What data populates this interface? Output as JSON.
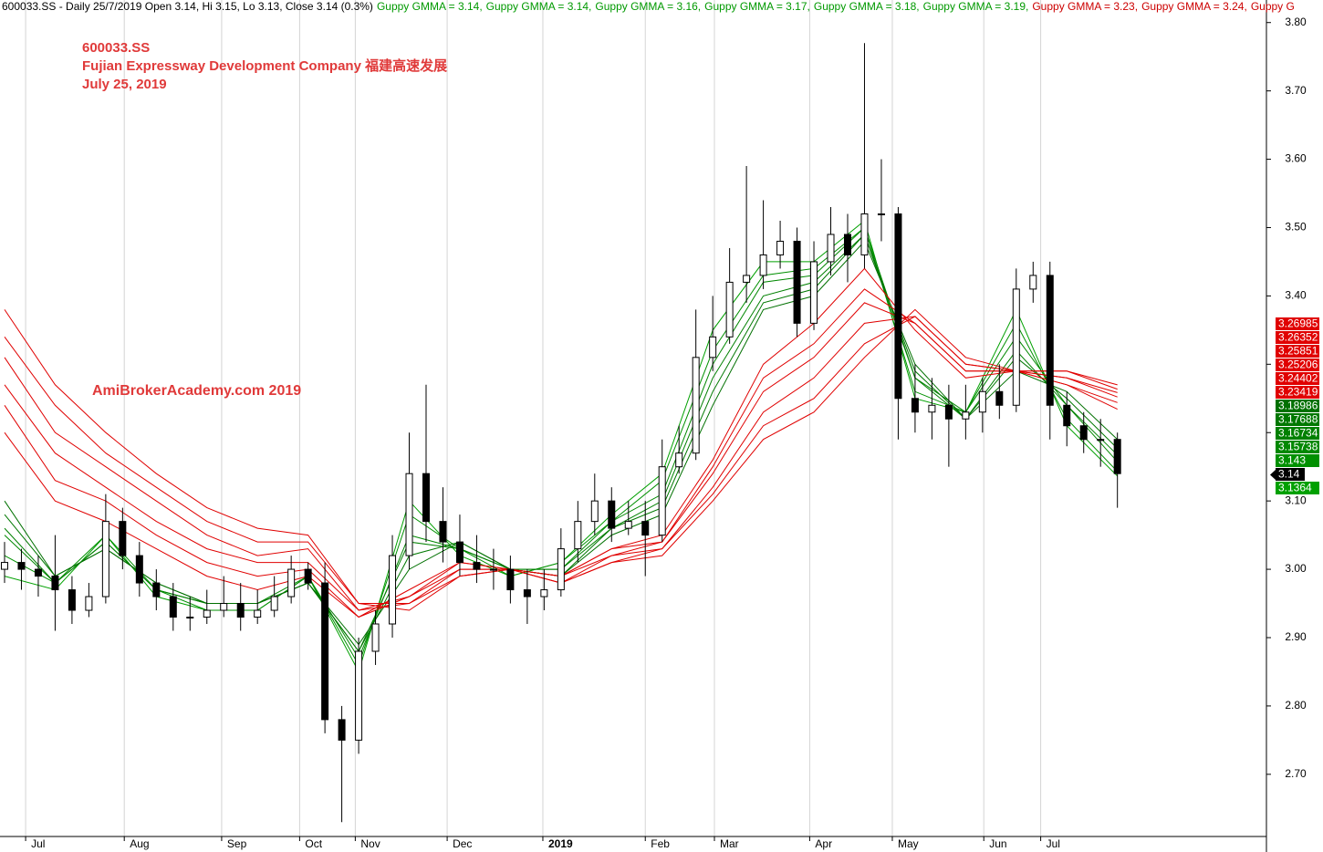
{
  "chart_data": {
    "type": "candlestick",
    "header": "600033.SS - Daily 25/7/2019 Open 3.14, Hi 3.15, Lo 3.13, Close 3.14 (0.3%)",
    "header_gmma": [
      {
        "text": "Guppy GMMA = 3.14,",
        "color": "#009900"
      },
      {
        "text": "Guppy GMMA = 3.14,",
        "color": "#009900"
      },
      {
        "text": "Guppy GMMA = 3.16,",
        "color": "#009900"
      },
      {
        "text": "Guppy GMMA = 3.17,",
        "color": "#009900"
      },
      {
        "text": "Guppy GMMA = 3.18,",
        "color": "#009900"
      },
      {
        "text": "Guppy GMMA = 3.19,",
        "color": "#009900"
      },
      {
        "text": "Guppy GMMA = 3.23,",
        "color": "#cc0000"
      },
      {
        "text": "Guppy GMMA = 3.24,",
        "color": "#cc0000"
      },
      {
        "text": "Guppy G",
        "color": "#cc0000"
      }
    ],
    "annotations": [
      "600033.SS",
      "Fujian Expressway Development Company   福建高速发展",
      "July 25, 2019"
    ],
    "watermark": "AmiBrokerAcademy.com  2019",
    "annotation_color": "#e03a3a",
    "xlim": [
      -1.08,
      299.35
    ],
    "ylim": [
      2.609,
      3.833
    ],
    "xticks": [
      {
        "value": 5,
        "label": "Jul"
      },
      {
        "value": 28.4,
        "label": "Aug"
      },
      {
        "value": 51.5,
        "label": "Sep"
      },
      {
        "value": 70,
        "label": "Oct"
      },
      {
        "value": 83.2,
        "label": "Nov"
      },
      {
        "value": 105,
        "label": "Dec"
      },
      {
        "value": 127.7,
        "label": "2019",
        "bold": true
      },
      {
        "value": 152,
        "label": "Feb"
      },
      {
        "value": 168.4,
        "label": "Mar"
      },
      {
        "value": 191,
        "label": "Apr"
      },
      {
        "value": 210.6,
        "label": "May"
      },
      {
        "value": 232.3,
        "label": "Jun"
      },
      {
        "value": 245.8,
        "label": "Jul"
      }
    ],
    "yticks": [
      {
        "value": 2.7,
        "label": "2.70"
      },
      {
        "value": 2.8,
        "label": "2.80"
      },
      {
        "value": 2.9,
        "label": "2.90"
      },
      {
        "value": 3.0,
        "label": "3.00"
      },
      {
        "value": 3.1,
        "label": "3.10"
      },
      {
        "value": 3.2,
        "label": "3.20"
      },
      {
        "value": 3.3,
        "label": "3.30"
      },
      {
        "value": 3.4,
        "label": "3.40"
      },
      {
        "value": 3.5,
        "label": "3.50"
      },
      {
        "value": 3.6,
        "label": "3.60"
      },
      {
        "value": 3.7,
        "label": "3.70"
      },
      {
        "value": 3.8,
        "label": "3.80"
      }
    ],
    "grid": true,
    "candles": {
      "x": [
        0,
        4,
        8,
        12,
        16,
        20,
        24,
        28,
        32,
        36,
        40,
        44,
        48,
        52,
        56,
        60,
        64,
        68,
        72,
        76,
        80,
        84,
        88,
        92,
        96,
        100,
        104,
        108,
        112,
        116,
        120,
        124,
        128,
        132,
        136,
        140,
        144,
        148,
        152,
        156,
        160,
        164,
        168,
        172,
        176,
        180,
        184,
        188,
        192,
        196,
        200,
        204,
        208,
        212,
        216,
        220,
        224,
        228,
        232,
        236,
        240,
        244,
        248,
        252,
        256,
        260,
        264
      ],
      "open": [
        3.0,
        3.01,
        3.0,
        2.99,
        2.97,
        2.94,
        2.96,
        3.07,
        3.02,
        2.98,
        2.96,
        2.93,
        2.93,
        2.94,
        2.95,
        2.93,
        2.94,
        2.96,
        3.0,
        2.98,
        2.78,
        2.75,
        2.88,
        2.92,
        3.02,
        3.14,
        3.07,
        3.04,
        3.01,
        3.0,
        3.0,
        2.97,
        2.96,
        2.97,
        3.03,
        3.07,
        3.1,
        3.06,
        3.07,
        3.05,
        3.15,
        3.17,
        3.31,
        3.34,
        3.42,
        3.43,
        3.46,
        3.48,
        3.36,
        3.45,
        3.49,
        3.46,
        3.52,
        3.52,
        3.25,
        3.23,
        3.24,
        3.22,
        3.23,
        3.26,
        3.24,
        3.41,
        3.43,
        3.24,
        3.21,
        3.19,
        3.19
      ],
      "high": [
        3.04,
        3.03,
        3.02,
        3.05,
        2.99,
        2.98,
        3.11,
        3.09,
        3.04,
        3.0,
        2.98,
        2.96,
        2.97,
        2.99,
        2.98,
        2.97,
        2.99,
        3.02,
        3.01,
        3.01,
        2.8,
        2.9,
        2.94,
        3.05,
        3.2,
        3.27,
        3.12,
        3.08,
        3.05,
        3.03,
        3.02,
        3.0,
        3.0,
        3.06,
        3.1,
        3.14,
        3.12,
        3.1,
        3.1,
        3.19,
        3.21,
        3.38,
        3.4,
        3.47,
        3.59,
        3.54,
        3.51,
        3.5,
        3.48,
        3.53,
        3.52,
        3.77,
        3.6,
        3.53,
        3.3,
        3.28,
        3.27,
        3.27,
        3.28,
        3.3,
        3.44,
        3.45,
        3.45,
        3.26,
        3.23,
        3.22,
        3.2
      ],
      "low": [
        2.98,
        2.97,
        2.96,
        2.91,
        2.92,
        2.93,
        2.95,
        3.0,
        2.96,
        2.94,
        2.91,
        2.91,
        2.92,
        2.93,
        2.91,
        2.92,
        2.93,
        2.95,
        2.97,
        2.76,
        2.63,
        2.73,
        2.86,
        2.9,
        3.0,
        3.04,
        3.01,
        2.99,
        2.98,
        2.97,
        2.95,
        2.92,
        2.94,
        2.96,
        3.01,
        3.05,
        3.04,
        3.05,
        2.99,
        3.04,
        3.14,
        3.16,
        3.29,
        3.33,
        3.39,
        3.41,
        3.44,
        3.34,
        3.35,
        3.43,
        3.42,
        3.44,
        3.48,
        3.19,
        3.2,
        3.19,
        3.15,
        3.19,
        3.2,
        3.22,
        3.23,
        3.39,
        3.19,
        3.18,
        3.17,
        3.15,
        3.09
      ],
      "close": [
        3.01,
        3.0,
        2.99,
        2.97,
        2.94,
        2.96,
        3.07,
        3.02,
        2.98,
        2.96,
        2.93,
        2.93,
        2.94,
        2.95,
        2.93,
        2.94,
        2.96,
        3.0,
        2.98,
        2.78,
        2.75,
        2.88,
        2.92,
        3.02,
        3.14,
        3.07,
        3.04,
        3.01,
        3.0,
        3.0,
        2.97,
        2.96,
        2.97,
        3.03,
        3.07,
        3.1,
        3.06,
        3.07,
        3.05,
        3.15,
        3.17,
        3.31,
        3.34,
        3.42,
        3.43,
        3.46,
        3.48,
        3.36,
        3.45,
        3.49,
        3.46,
        3.52,
        3.52,
        3.25,
        3.23,
        3.24,
        3.22,
        3.23,
        3.26,
        3.24,
        3.41,
        3.43,
        3.24,
        3.21,
        3.19,
        3.19,
        3.14
      ],
      "up_color": "#ffffff",
      "down_color": "#000000",
      "label_color": "#000000"
    },
    "line_x": [
      0,
      12,
      24,
      36,
      48,
      60,
      72,
      84,
      96,
      108,
      120,
      132,
      144,
      156,
      168,
      180,
      192,
      204,
      216,
      228,
      240,
      252,
      264
    ],
    "series": [
      {
        "color": "#00a000",
        "values": [
          2.99,
          2.97,
          3.05,
          2.96,
          2.94,
          2.94,
          2.99,
          2.85,
          3.1,
          3.02,
          2.99,
          3.01,
          3.08,
          3.14,
          3.35,
          3.45,
          3.45,
          3.51,
          3.25,
          3.23,
          3.38,
          3.21,
          3.1364
        ]
      },
      {
        "color": "#009000",
        "values": [
          3.02,
          2.98,
          3.05,
          2.97,
          2.94,
          2.94,
          2.99,
          2.86,
          3.08,
          3.03,
          2.99,
          3.01,
          3.07,
          3.13,
          3.32,
          3.43,
          3.44,
          3.5,
          3.26,
          3.23,
          3.36,
          3.22,
          3.143
        ]
      },
      {
        "color": "#008800",
        "values": [
          3.05,
          2.98,
          3.04,
          2.97,
          2.95,
          2.95,
          2.99,
          2.87,
          3.05,
          3.03,
          3.0,
          3.0,
          3.07,
          3.11,
          3.3,
          3.42,
          3.43,
          3.5,
          3.28,
          3.23,
          3.34,
          3.24,
          3.15738
        ]
      },
      {
        "color": "#008000",
        "values": [
          3.06,
          2.98,
          3.04,
          2.97,
          2.95,
          2.95,
          2.98,
          2.88,
          3.04,
          3.03,
          3.0,
          3.0,
          3.06,
          3.1,
          3.28,
          3.4,
          3.42,
          3.49,
          3.28,
          3.22,
          3.32,
          3.24,
          3.16734
        ]
      },
      {
        "color": "#007800",
        "values": [
          3.08,
          2.99,
          3.03,
          2.98,
          2.95,
          2.95,
          2.98,
          2.88,
          3.02,
          3.04,
          3.0,
          2.99,
          3.06,
          3.09,
          3.26,
          3.39,
          3.41,
          3.49,
          3.29,
          3.22,
          3.31,
          3.25,
          3.17688
        ]
      },
      {
        "color": "#007000",
        "values": [
          3.1,
          2.99,
          3.03,
          2.98,
          2.95,
          2.95,
          2.98,
          2.89,
          3.0,
          3.04,
          3.0,
          2.99,
          3.05,
          3.08,
          3.24,
          3.38,
          3.4,
          3.48,
          3.3,
          3.22,
          3.29,
          3.26,
          3.18986
        ]
      },
      {
        "color": "#e00000",
        "values": [
          3.2,
          3.1,
          3.07,
          3.03,
          2.99,
          2.97,
          2.99,
          2.93,
          2.97,
          3.01,
          3.0,
          2.99,
          3.03,
          3.05,
          3.16,
          3.3,
          3.36,
          3.44,
          3.35,
          3.28,
          3.29,
          3.27,
          3.23419
        ]
      },
      {
        "color": "#e00000",
        "values": [
          3.24,
          3.13,
          3.1,
          3.05,
          3.01,
          2.99,
          3.0,
          2.93,
          2.96,
          3.01,
          3.0,
          2.99,
          3.03,
          3.04,
          3.15,
          3.28,
          3.33,
          3.41,
          3.36,
          3.29,
          3.29,
          3.27,
          3.24402
        ]
      },
      {
        "color": "#e00000",
        "values": [
          3.27,
          3.17,
          3.12,
          3.07,
          3.03,
          3.01,
          3.01,
          2.94,
          2.96,
          3.0,
          3.0,
          2.99,
          3.02,
          3.04,
          3.14,
          3.26,
          3.31,
          3.39,
          3.36,
          3.29,
          3.29,
          3.28,
          3.25206
        ]
      },
      {
        "color": "#e00000",
        "values": [
          3.31,
          3.2,
          3.15,
          3.1,
          3.05,
          3.02,
          3.03,
          2.94,
          2.95,
          3.0,
          3.0,
          2.98,
          3.02,
          3.03,
          3.12,
          3.23,
          3.28,
          3.36,
          3.37,
          3.3,
          3.29,
          3.28,
          3.25851
        ]
      },
      {
        "color": "#e00000",
        "values": [
          3.34,
          3.24,
          3.17,
          3.12,
          3.07,
          3.04,
          3.04,
          2.95,
          2.95,
          2.99,
          3.0,
          2.98,
          3.01,
          3.03,
          3.11,
          3.21,
          3.25,
          3.33,
          3.37,
          3.3,
          3.29,
          3.29,
          3.26352
        ]
      },
      {
        "color": "#e00000",
        "values": [
          3.38,
          3.27,
          3.2,
          3.14,
          3.09,
          3.06,
          3.05,
          2.95,
          2.94,
          2.99,
          3.0,
          2.98,
          3.01,
          3.02,
          3.1,
          3.19,
          3.23,
          3.31,
          3.38,
          3.31,
          3.29,
          3.29,
          3.26985
        ]
      }
    ]
  }
}
